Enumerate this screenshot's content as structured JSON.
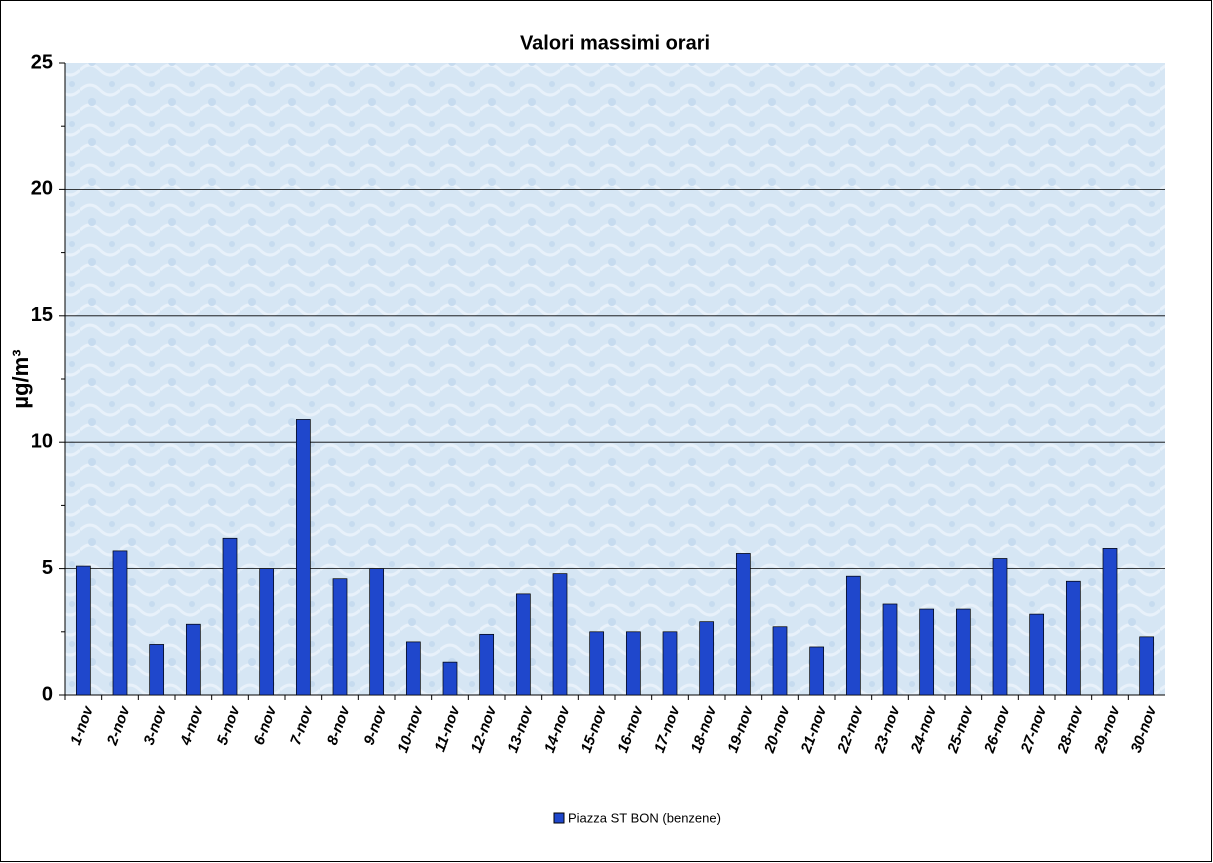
{
  "chart_data": {
    "type": "bar",
    "title": "Valori massimi orari",
    "ylabel": "µg/m³",
    "categories": [
      "1-nov",
      "2-nov",
      "3-nov",
      "4-nov",
      "5-nov",
      "6-nov",
      "7-nov",
      "8-nov",
      "9-nov",
      "10-nov",
      "11-nov",
      "12-nov",
      "13-nov",
      "14-nov",
      "15-nov",
      "16-nov",
      "17-nov",
      "18-nov",
      "19-nov",
      "20-nov",
      "21-nov",
      "22-nov",
      "23-nov",
      "24-nov",
      "25-nov",
      "26-nov",
      "27-nov",
      "28-nov",
      "29-nov",
      "30-nov"
    ],
    "series": [
      {
        "name": "Piazza ST BON (benzene)",
        "color": "#1f47cc",
        "values": [
          5.1,
          5.7,
          2.0,
          2.8,
          6.2,
          5.0,
          10.9,
          4.6,
          5.0,
          2.1,
          1.3,
          2.4,
          4.0,
          4.8,
          2.5,
          2.5,
          2.5,
          2.9,
          5.6,
          2.7,
          1.9,
          4.7,
          3.6,
          3.4,
          3.4,
          5.4,
          3.2,
          4.5,
          5.8,
          2.3
        ]
      }
    ],
    "ylim": [
      0,
      25
    ],
    "yticks": [
      0,
      5,
      10,
      15,
      20,
      25
    ],
    "yminorticks": [
      2.5,
      7.5,
      12.5,
      17.5,
      22.5
    ],
    "grid": true,
    "legend": "bottom"
  }
}
